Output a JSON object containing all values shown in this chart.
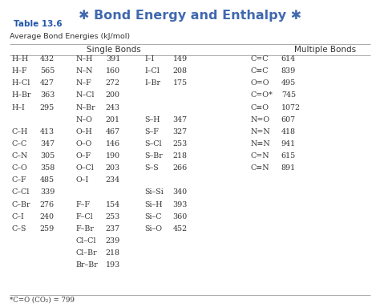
{
  "title": "Bond Energy and Enthalpy",
  "table_label": "Table 13.6",
  "subtitle": "Average Bond Energies (kJ/mol)",
  "header_single": "Single Bonds",
  "header_multiple": "Multiple Bonds",
  "footnote": "*C=O (CO₂) = 799",
  "bg_color": "#ffffff",
  "title_color": "#4169b0",
  "table_label_color": "#2255aa",
  "table_label_bg": "#dce6f1",
  "text_color": "#333333",
  "col1_bonds": [
    "H–H",
    "H–F",
    "H–Cl",
    "H–Br",
    "H–I",
    "",
    "C–H",
    "C–C",
    "C–N",
    "C–O",
    "C–F",
    "C–Cl",
    "C–Br",
    "C–I",
    "C–S"
  ],
  "col1_vals": [
    "432",
    "565",
    "427",
    "363",
    "295",
    "",
    "413",
    "347",
    "305",
    "358",
    "485",
    "339",
    "276",
    "240",
    "259"
  ],
  "col2_bonds": [
    "N–H",
    "N–N",
    "N–F",
    "N–Cl",
    "N–Br",
    "N–O",
    "O–H",
    "O–O",
    "O–F",
    "O–Cl",
    "O–I",
    "",
    "F–F",
    "F–Cl",
    "F–Br",
    "Cl–Cl",
    "Cl–Br",
    "Br–Br"
  ],
  "col2_vals": [
    "391",
    "160",
    "272",
    "200",
    "243",
    "201",
    "467",
    "146",
    "190",
    "203",
    "234",
    "",
    "154",
    "253",
    "237",
    "239",
    "218",
    "193"
  ],
  "col3_bonds": [
    "I–I",
    "I–Cl",
    "I–Br",
    "",
    "",
    "S–H",
    "S–F",
    "S–Cl",
    "S–Br",
    "S–S",
    "",
    "Si–Si",
    "Si–H",
    "Si–C",
    "Si–O"
  ],
  "col3_vals": [
    "149",
    "208",
    "175",
    "",
    "",
    "347",
    "327",
    "253",
    "218",
    "266",
    "",
    "340",
    "393",
    "360",
    "452"
  ],
  "col4_bonds": [
    "C=C",
    "C≡C",
    "O=O",
    "C=O*",
    "C≡O",
    "N=O",
    "N=N",
    "N≡N",
    "C=N",
    "C≡N"
  ],
  "col4_vals": [
    "614",
    "839",
    "495",
    "745",
    "1072",
    "607",
    "418",
    "941",
    "615",
    "891"
  ]
}
